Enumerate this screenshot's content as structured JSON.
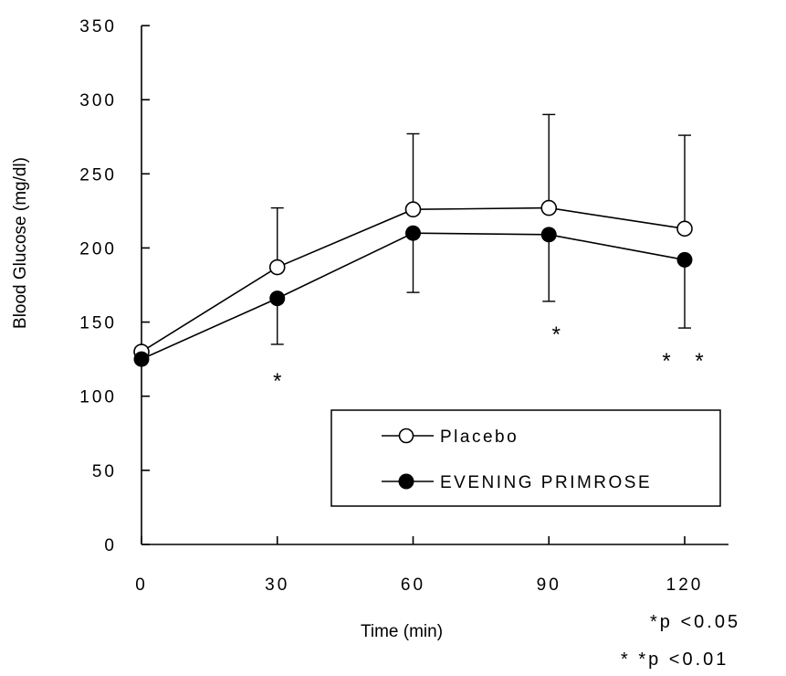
{
  "chart_data": {
    "type": "line",
    "xlabel": "Time (min)",
    "ylabel": "Blood Glucose (mg/dl)",
    "x": [
      0,
      30,
      60,
      90,
      120
    ],
    "xticks": [
      "0",
      "30",
      "60",
      "90",
      "120"
    ],
    "yticks": [
      "0",
      "50",
      "100",
      "150",
      "200",
      "250",
      "300",
      "350"
    ],
    "xlim": [
      0,
      120
    ],
    "ylim": [
      0,
      350
    ],
    "grid": false,
    "legend_position": "bottom-right",
    "series": [
      {
        "name": "Placebo",
        "marker": "open-circle",
        "color": "#000000",
        "values": [
          130,
          187,
          226,
          227,
          213
        ],
        "error_upper": [
          null,
          227,
          277,
          290,
          276
        ]
      },
      {
        "name": "EVENING PRIMROSE",
        "marker": "filled-circle",
        "color": "#000000",
        "values": [
          125,
          166,
          210,
          209,
          192
        ],
        "error_lower": [
          null,
          135,
          170,
          164,
          146
        ]
      }
    ],
    "annotations": [
      {
        "x": 30,
        "text": "*"
      },
      {
        "x": 90,
        "text": "*"
      },
      {
        "x": 120,
        "text": "* *"
      }
    ],
    "footnotes": [
      "*p <0.05",
      "* *p <0.01"
    ]
  }
}
